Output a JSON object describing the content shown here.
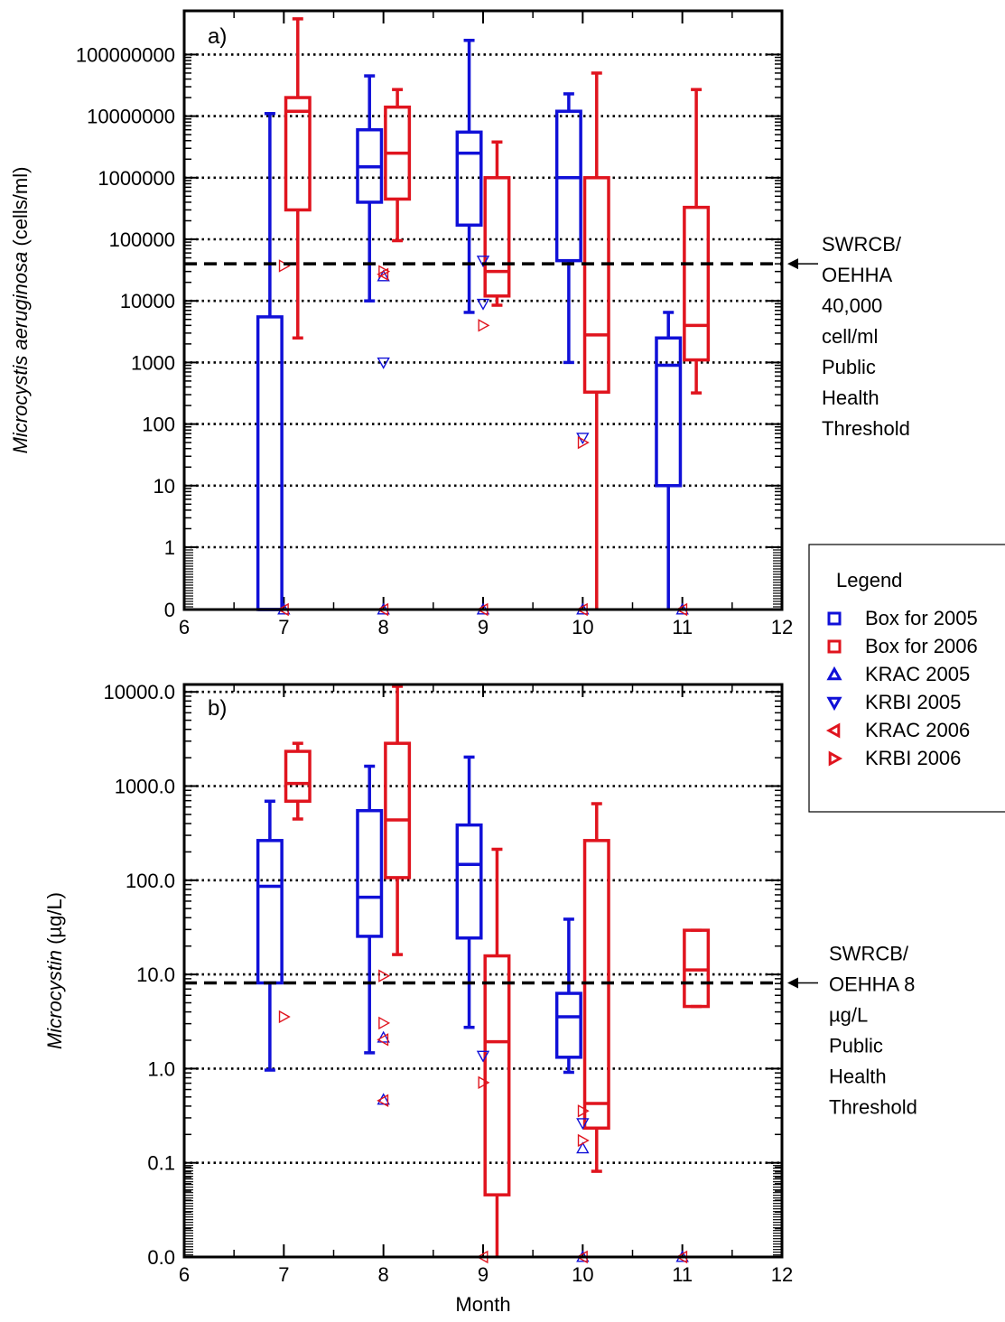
{
  "colors": {
    "y2005": "#1010d8",
    "y2006": "#e0141e",
    "axis": "#000000"
  },
  "chart_data": [
    {
      "type": "box",
      "panel_label": "a)",
      "ylabel_italic": "Microcystis aeruginosa",
      "ylabel_rest": " (cells/ml)",
      "xlim": [
        6,
        12
      ],
      "x_ticks": [
        "6",
        "7",
        "8",
        "9",
        "10",
        "11",
        "12"
      ],
      "y_scale": "log",
      "y_ticks": [
        "0",
        "1",
        "10",
        "100",
        "1000",
        "10000",
        "100000",
        "1000000",
        "10000000",
        "100000000"
      ],
      "grid": "dotted at each decade",
      "threshold_value": 40000,
      "threshold_lines": [
        "SWRCB/",
        "OEHHA",
        "40,000",
        "cell/ml",
        "Public",
        "Health",
        "Threshold"
      ],
      "series": [
        {
          "name": "Box for 2005",
          "boxes": [
            {
              "month": 7,
              "whisker_low": 0,
              "q1": 0,
              "median": 0,
              "q3": 5500,
              "whisker_high": 11000000
            },
            {
              "month": 8,
              "whisker_low": 10000,
              "q1": 400000,
              "median": 1500000,
              "q3": 6000000,
              "whisker_high": 45000000
            },
            {
              "month": 9,
              "whisker_low": 6500,
              "q1": 170000,
              "median": 2500000,
              "q3": 5500000,
              "whisker_high": 170000000
            },
            {
              "month": 10,
              "whisker_low": 1000,
              "q1": 45000,
              "median": 1000000,
              "q3": 12000000,
              "whisker_high": 23000000
            },
            {
              "month": 11,
              "whisker_low": 0,
              "q1": 10,
              "median": 900,
              "q3": 2500,
              "whisker_high": 6500
            }
          ]
        },
        {
          "name": "Box for 2006",
          "boxes": [
            {
              "month": 7,
              "whisker_low": 2500,
              "q1": 300000,
              "median": 12000000,
              "q3": 20000000,
              "whisker_high": 380000000
            },
            {
              "month": 8,
              "whisker_low": 95000,
              "q1": 450000,
              "median": 2500000,
              "q3": 14000000,
              "whisker_high": 27000000
            },
            {
              "month": 9,
              "whisker_low": 8500,
              "q1": 12000,
              "median": 30000,
              "q3": 1000000,
              "whisker_high": 3800000
            },
            {
              "month": 10,
              "whisker_low": 0,
              "q1": 330,
              "median": 2800,
              "q3": 1000000,
              "whisker_high": 50000000
            },
            {
              "month": 11,
              "whisker_low": 320,
              "q1": 1100,
              "median": 4000,
              "q3": 330000,
              "whisker_high": 27000000
            }
          ]
        }
      ],
      "points": [
        {
          "series": "KRAC 2005",
          "x": 8,
          "y": 25000
        },
        {
          "series": "KRBI 2005",
          "x": 8,
          "y": 1000
        },
        {
          "series": "KRBI 2005",
          "x": 9,
          "y": 45000
        },
        {
          "series": "KRBI 2005",
          "x": 9,
          "y": 9000
        },
        {
          "series": "KRBI 2005",
          "x": 10,
          "y": 60
        },
        {
          "series": "KRAC 2005",
          "x": 7,
          "y": 0
        },
        {
          "series": "KRAC 2005",
          "x": 8,
          "y": 0
        },
        {
          "series": "KRAC 2005",
          "x": 9,
          "y": 0
        },
        {
          "series": "KRAC 2005",
          "x": 10,
          "y": 0
        },
        {
          "series": "KRAC 2005",
          "x": 11,
          "y": 0
        },
        {
          "series": "KRBI 2006",
          "x": 7,
          "y": 37000
        },
        {
          "series": "KRBI 2006",
          "x": 8,
          "y": 30000
        },
        {
          "series": "KRAC 2006",
          "x": 8,
          "y": 27000
        },
        {
          "series": "KRBI 2006",
          "x": 9,
          "y": 4000
        },
        {
          "series": "KRBI 2006",
          "x": 10,
          "y": 50
        },
        {
          "series": "KRAC 2006",
          "x": 7,
          "y": 0
        },
        {
          "series": "KRAC 2006",
          "x": 8,
          "y": 0
        },
        {
          "series": "KRAC 2006",
          "x": 9,
          "y": 0
        },
        {
          "series": "KRAC 2006",
          "x": 10,
          "y": 0
        },
        {
          "series": "KRAC 2006",
          "x": 11,
          "y": 0
        }
      ]
    },
    {
      "type": "box",
      "panel_label": "b)",
      "ylabel_italic": "Microcystin",
      "ylabel_rest": " (µg/L)",
      "xlabel": "Month",
      "xlim": [
        6,
        12
      ],
      "x_ticks": [
        "6",
        "7",
        "8",
        "9",
        "10",
        "11",
        "12"
      ],
      "y_scale": "log",
      "y_ticks": [
        "0.0",
        "0.1",
        "1.0",
        "10.0",
        "100.0",
        "1000.0",
        "10000.0"
      ],
      "grid": "dotted at each decade",
      "threshold_value": 8,
      "threshold_lines": [
        "SWRCB/",
        "OEHHA 8",
        "µg/L",
        "Public",
        "Health",
        "Threshold"
      ],
      "series": [
        {
          "name": "Box for 2005",
          "boxes": [
            {
              "month": 7,
              "whisker_low": 0.95,
              "q1": 8,
              "median": 85,
              "q3": 260,
              "whisker_high": 680
            },
            {
              "month": 8,
              "whisker_low": 1.45,
              "q1": 25,
              "median": 65,
              "q3": 540,
              "whisker_high": 1600
            },
            {
              "month": 9,
              "whisker_low": 2.7,
              "q1": 24,
              "median": 145,
              "q3": 380,
              "whisker_high": 2000
            },
            {
              "month": 10,
              "whisker_low": 0.9,
              "q1": 1.3,
              "median": 3.5,
              "q3": 6.2,
              "whisker_high": 38
            }
          ]
        },
        {
          "name": "Box for 2006",
          "boxes": [
            {
              "month": 7,
              "whisker_low": 440,
              "q1": 680,
              "median": 1050,
              "q3": 2300,
              "whisker_high": 2800
            },
            {
              "month": 8,
              "whisker_low": 16,
              "q1": 105,
              "median": 430,
              "q3": 2800,
              "whisker_high": 12000
            },
            {
              "month": 9,
              "whisker_low": 0,
              "q1": 0.045,
              "median": 1.9,
              "q3": 15.5,
              "whisker_high": 210
            },
            {
              "month": 10,
              "whisker_low": 0.08,
              "q1": 0.23,
              "median": 0.42,
              "q3": 260,
              "whisker_high": 640
            },
            {
              "month": 11,
              "whisker_low": 4.5,
              "q1": 4.5,
              "median": 11,
              "q3": 29,
              "whisker_high": 29
            }
          ]
        }
      ],
      "points": [
        {
          "series": "KRAC 2005",
          "x": 8,
          "y": 2.1
        },
        {
          "series": "KRAC 2005",
          "x": 8,
          "y": 0.46
        },
        {
          "series": "KRBI 2005",
          "x": 9,
          "y": 1.35
        },
        {
          "series": "KRBI 2005",
          "x": 10,
          "y": 0.26
        },
        {
          "series": "KRAC 2005",
          "x": 10,
          "y": 0.14
        },
        {
          "series": "KRAC 2005",
          "x": 10,
          "y": 0
        },
        {
          "series": "KRAC 2005",
          "x": 11,
          "y": 0
        },
        {
          "series": "KRBI 2006",
          "x": 7,
          "y": 3.5
        },
        {
          "series": "KRBI 2006",
          "x": 8,
          "y": 9.5
        },
        {
          "series": "KRBI 2006",
          "x": 8,
          "y": 3.0
        },
        {
          "series": "KRAC 2006",
          "x": 8,
          "y": 2.0
        },
        {
          "series": "KRAC 2006",
          "x": 8,
          "y": 0.45
        },
        {
          "series": "KRBI 2006",
          "x": 9,
          "y": 0.7
        },
        {
          "series": "KRBI 2006",
          "x": 10,
          "y": 0.35
        },
        {
          "series": "KRBI 2006",
          "x": 10,
          "y": 0.17
        },
        {
          "series": "KRAC 2006",
          "x": 9,
          "y": 0
        },
        {
          "series": "KRAC 2006",
          "x": 10,
          "y": 0
        },
        {
          "series": "KRAC 2006",
          "x": 11,
          "y": 0
        }
      ]
    }
  ],
  "legend": {
    "title": "Legend",
    "items": [
      {
        "label": "Box for 2005",
        "marker": "square",
        "color": "#1010d8"
      },
      {
        "label": "Box for 2006",
        "marker": "square",
        "color": "#e0141e"
      },
      {
        "label": "KRAC 2005",
        "marker": "triangle-up",
        "color": "#1010d8"
      },
      {
        "label": "KRBI 2005",
        "marker": "triangle-down",
        "color": "#1010d8"
      },
      {
        "label": "KRAC 2006",
        "marker": "triangle-left",
        "color": "#e0141e"
      },
      {
        "label": "KRBI 2006",
        "marker": "triangle-right",
        "color": "#e0141e"
      }
    ]
  }
}
